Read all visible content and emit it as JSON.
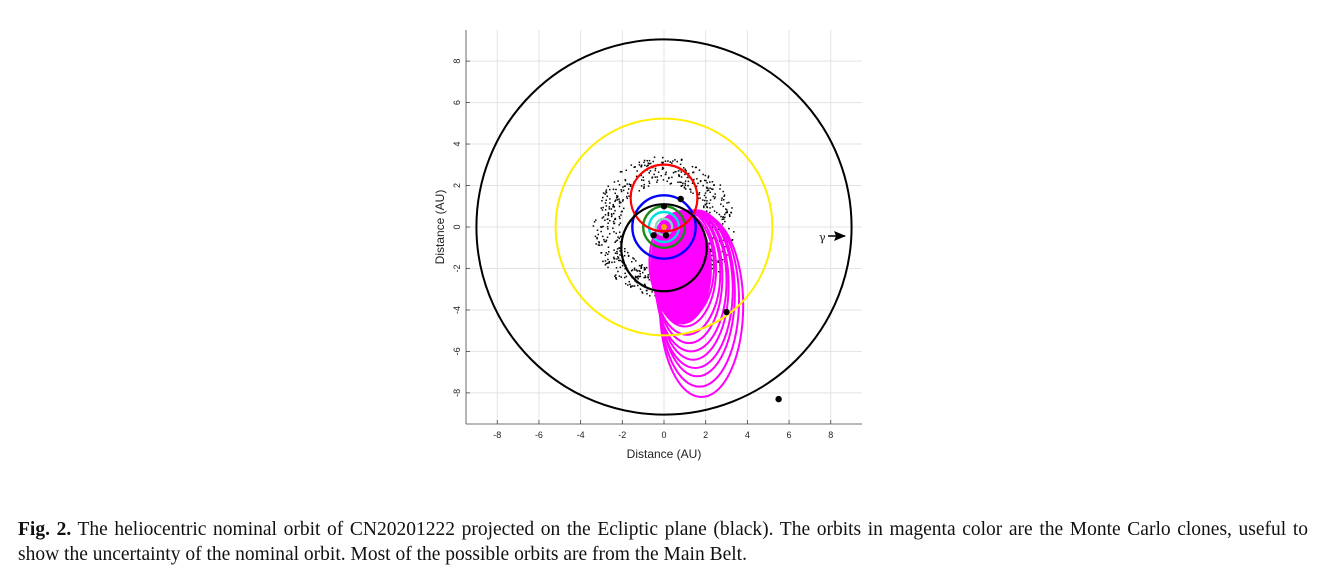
{
  "chart_data": {
    "type": "scatter",
    "title": "",
    "xlabel": "Distance (AU)",
    "ylabel": "Distance (AU)",
    "xlim": [
      -9.5,
      9.5
    ],
    "ylim": [
      -9.5,
      9.5
    ],
    "xticks": [
      -8,
      -6,
      -4,
      -2,
      0,
      2,
      4,
      6,
      8
    ],
    "yticks": [
      -8,
      -6,
      -4,
      -2,
      0,
      2,
      4,
      6,
      8
    ],
    "grid": true,
    "vernal_equinox_symbol": "γ",
    "sun": {
      "x": 0,
      "y": 0,
      "color": "#f7a800"
    },
    "planet_orbits": [
      {
        "radius": 0.39,
        "color": "#7fd6c2"
      },
      {
        "radius": 0.72,
        "color": "#00e0e0"
      },
      {
        "radius": 1.0,
        "color": "#1a8a1a"
      },
      {
        "radius": 1.52,
        "color": "#0000ff"
      },
      {
        "radius": 5.2,
        "color": "#ffee00"
      },
      {
        "radius": 9.0,
        "color": "#000000"
      }
    ],
    "mars_red_orbit": {
      "radius": 1.6,
      "cx": 0,
      "cy": 1.4,
      "color": "#ff0000"
    },
    "nominal_orbit": {
      "a": 2.05,
      "b": 2.1,
      "cx": 0,
      "cy": -1.0,
      "color": "#000000"
    },
    "clone_orbits": {
      "color": "#ff00ff",
      "orbits": [
        {
          "cx": 1.8,
          "cy": -3.8,
          "rx": 2.0,
          "ry": 4.4
        },
        {
          "cx": 1.7,
          "cy": -3.5,
          "rx": 1.9,
          "ry": 4.2
        },
        {
          "cx": 1.6,
          "cy": -3.2,
          "rx": 1.8,
          "ry": 4.0
        },
        {
          "cx": 1.5,
          "cy": -3.0,
          "rx": 1.8,
          "ry": 3.8
        },
        {
          "cx": 1.4,
          "cy": -2.8,
          "rx": 1.7,
          "ry": 3.6
        },
        {
          "cx": 1.3,
          "cy": -2.6,
          "rx": 1.7,
          "ry": 3.4
        },
        {
          "cx": 1.2,
          "cy": -2.4,
          "rx": 1.6,
          "ry": 3.2
        },
        {
          "cx": 1.1,
          "cy": -2.2,
          "rx": 1.6,
          "ry": 3.0
        },
        {
          "cx": 1.0,
          "cy": -2.0,
          "rx": 1.5,
          "ry": 2.8
        },
        {
          "cx": 0.9,
          "cy": -1.9,
          "rx": 1.5,
          "ry": 2.6
        },
        {
          "cx": 0.8,
          "cy": -1.8,
          "rx": 1.4,
          "ry": 2.5
        },
        {
          "cx": 0.7,
          "cy": -1.7,
          "rx": 1.4,
          "ry": 2.4
        }
      ]
    },
    "planet_positions": [
      {
        "x": 0.0,
        "y": 1.0
      },
      {
        "x": -0.5,
        "y": -0.4
      },
      {
        "x": 0.1,
        "y": -0.4
      },
      {
        "x": 0.8,
        "y": 1.35
      },
      {
        "x": 3.0,
        "y": -4.1
      },
      {
        "x": 5.5,
        "y": -8.3
      }
    ],
    "main_belt": {
      "inner_radius": 2.1,
      "outer_radius": 3.4,
      "count": 700,
      "color": "#000000"
    }
  },
  "caption": {
    "label": "Fig. 2.",
    "text": " The heliocentric nominal orbit of CN20201222 projected on the Ecliptic plane (black). The orbits in magenta color are the Monte Carlo clones, useful to show the uncertainty of the nominal orbit. Most of the possible orbits are from the Main Belt."
  }
}
